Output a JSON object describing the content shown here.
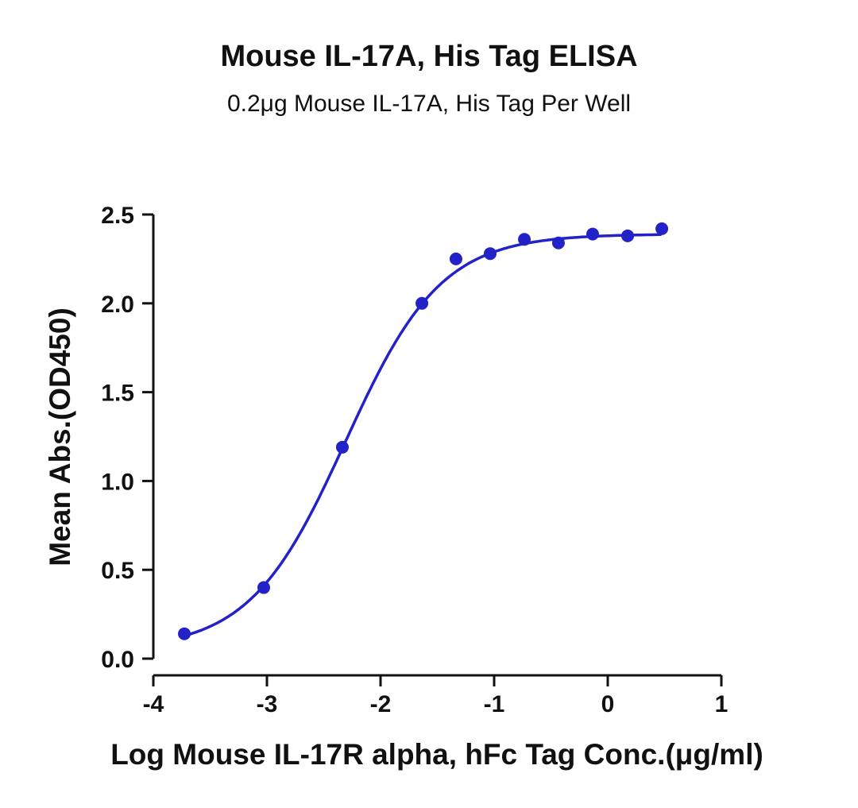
{
  "chart_data": {
    "type": "scatter",
    "title": "Mouse IL-17A, His Tag ELISA",
    "subtitle": "0.2μg Mouse IL-17A, His Tag Per Well",
    "xlabel": "Log Mouse IL-17R alpha, hFc Tag Conc.(μg/ml)",
    "ylabel": "Mean Abs.(OD450)",
    "xlim": [
      -4,
      1
    ],
    "ylim": [
      0,
      2.5
    ],
    "xticks": [
      -4,
      -3,
      -2,
      -1,
      0,
      1
    ],
    "xtick_labels": [
      "-4",
      "-3",
      "-2",
      "-1",
      "0",
      "1"
    ],
    "yticks": [
      0,
      0.5,
      1,
      1.5,
      2,
      2.5
    ],
    "ytick_labels": [
      "0.0",
      "0.5",
      "1.0",
      "1.5",
      "2.0",
      "2.5"
    ],
    "grid": false,
    "color": "#2222c8",
    "x": [
      -3.727,
      -3.028,
      -2.336,
      -1.636,
      -1.336,
      -1.035,
      -0.734,
      -0.434,
      -0.133,
      0.175,
      0.476
    ],
    "y": [
      0.14,
      0.4,
      1.19,
      2.0,
      2.25,
      2.28,
      2.36,
      2.34,
      2.39,
      2.38,
      2.42
    ],
    "fit": {
      "model": "4PL",
      "bottom": 0.05,
      "top": 2.39,
      "logEC50": -2.31,
      "hill": 1.03
    }
  }
}
